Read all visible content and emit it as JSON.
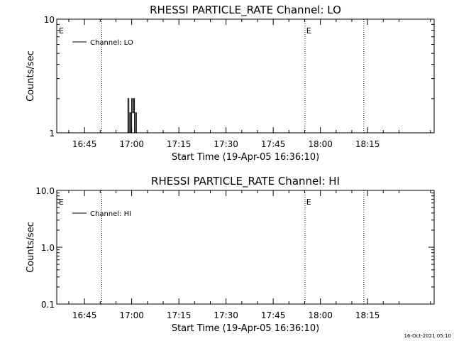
{
  "chart_data": [
    {
      "type": "line",
      "title": "RHESSI PARTICLE_RATE Channel: LO",
      "xlabel": "Start Time (19-Apr-05 16:36:10)",
      "ylabel": "Counts/sec",
      "yscale": "log",
      "ylim": [
        1,
        10
      ],
      "y_ticks": [
        "1",
        "10"
      ],
      "x_ticks": [
        "16:45",
        "17:00",
        "17:15",
        "17:30",
        "17:45",
        "18:00",
        "18:15"
      ],
      "x_tick_minutes": [
        525,
        540,
        555,
        570,
        585,
        600,
        615
      ],
      "xlim_minutes": [
        516.17,
        636.17
      ],
      "grid": false,
      "legend": {
        "position": "top-left",
        "entries": [
          "Channel: LO"
        ]
      },
      "event_lines_minutes": [
        530.5,
        595.1,
        613.8
      ],
      "event_labels": [
        {
          "text": "E",
          "minute": 516.6
        },
        {
          "text": "E",
          "minute": 595.3
        }
      ],
      "series": [
        {
          "name": "Channel: LO",
          "x": [
            516.17,
            538.8,
            538.8,
            539.1,
            539.1,
            539.4,
            539.4,
            539.7,
            539.7,
            540.0,
            540.0,
            540.3,
            540.3,
            540.6,
            540.6,
            540.9,
            540.9,
            541.2,
            541.2,
            541.5,
            541.5,
            541.8,
            541.8,
            636.17
          ],
          "y": [
            1,
            1,
            2,
            2,
            1,
            1,
            1.5,
            1.5,
            1,
            1,
            2,
            2,
            1.5,
            1.5,
            2,
            2,
            1,
            1,
            1.5,
            1.5,
            1,
            1,
            1,
            1
          ]
        }
      ]
    },
    {
      "type": "line",
      "title": "RHESSI PARTICLE_RATE Channel: HI",
      "xlabel": "Start Time (19-Apr-05 16:36:10)",
      "ylabel": "Counts/sec",
      "yscale": "log",
      "ylim": [
        0.1,
        10
      ],
      "y_ticks": [
        "0.1",
        "1.0",
        "10.0"
      ],
      "x_ticks": [
        "16:45",
        "17:00",
        "17:15",
        "17:30",
        "17:45",
        "18:00",
        "18:15"
      ],
      "x_tick_minutes": [
        525,
        540,
        555,
        570,
        585,
        600,
        615
      ],
      "xlim_minutes": [
        516.17,
        636.17
      ],
      "grid": false,
      "legend": {
        "position": "top-left",
        "entries": [
          "Channel: HI"
        ]
      },
      "event_lines_minutes": [
        530.5,
        595.1,
        613.8
      ],
      "event_labels": [
        {
          "text": "E",
          "minute": 516.6
        },
        {
          "text": "E",
          "minute": 595.3
        }
      ],
      "series": [
        {
          "name": "Channel: HI",
          "x": [],
          "y": []
        }
      ]
    }
  ],
  "footer": {
    "timestamp": "16-Oct-2021 05:10"
  }
}
